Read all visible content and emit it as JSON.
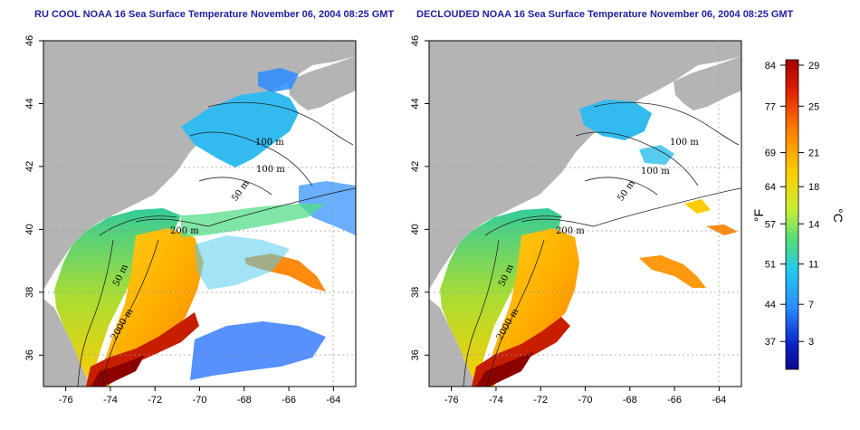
{
  "titles": {
    "left": "RU COOL NOAA 16 Sea Surface Temperature November 06, 2004 08:25 GMT",
    "right": "DECLOUDED NOAA 16 Sea Surface Temperature November 06, 2004 08:25 GMT"
  },
  "axes": {
    "longitude_ticks": [
      "-76",
      "-74",
      "-72",
      "-70",
      "-68",
      "-66",
      "-64"
    ],
    "latitude_ticks": [
      "36",
      "38",
      "40",
      "42",
      "44",
      "46"
    ]
  },
  "contour_labels": {
    "left": [
      "100 m",
      "100 m",
      "50 m",
      "200 m",
      "50 m",
      "2000 m"
    ],
    "right": [
      "100 m",
      "100 m",
      "50 m",
      "200 m",
      "50 m",
      "2000 m"
    ]
  },
  "colorbar": {
    "fahrenheit_ticks": [
      "84",
      "77",
      "69",
      "64",
      "57",
      "51",
      "44",
      "37"
    ],
    "celsius_ticks": [
      "29",
      "25",
      "21",
      "18",
      "14",
      "11",
      "7",
      "3"
    ],
    "fahrenheit_unit": "°F",
    "celsius_unit": "°C",
    "colors": [
      "#a50000",
      "#e02000",
      "#ff7a00",
      "#ffcc00",
      "#ccee33",
      "#55dd77",
      "#22ccee",
      "#2a8cff",
      "#0a20c8",
      "#0a0a8a"
    ]
  },
  "colors": {
    "land": "#b4b4b4",
    "title": "#1f1f9f",
    "grid": "#888888"
  }
}
